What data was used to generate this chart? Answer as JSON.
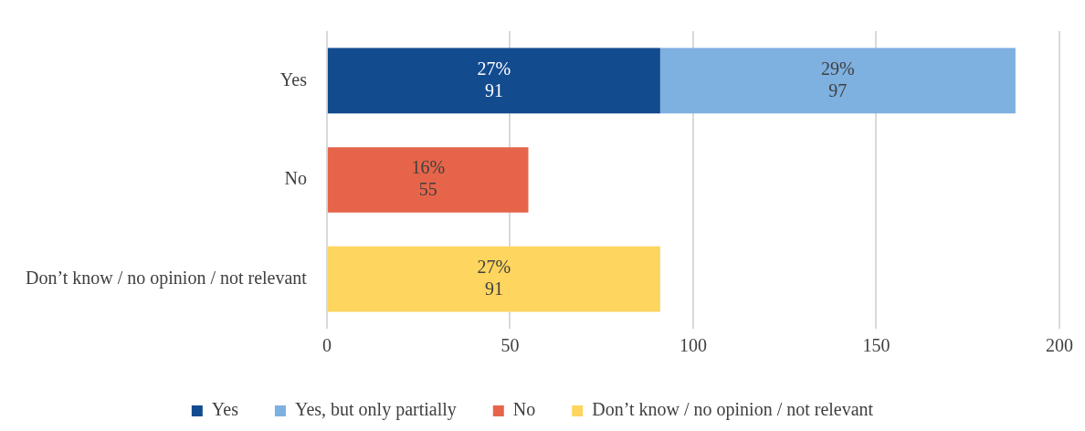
{
  "chart_data": {
    "type": "bar",
    "orientation": "horizontal",
    "stacked": true,
    "categories": [
      "Yes",
      "No",
      "Don’t know / no opinion / not relevant"
    ],
    "series": [
      {
        "name": "Yes",
        "color": "#134b8f",
        "values": [
          91,
          null,
          null
        ],
        "value_labels": [
          "27%\n91",
          null,
          null
        ]
      },
      {
        "name": "Yes, but only partially",
        "color": "#7eb0e0",
        "values": [
          97,
          null,
          null
        ],
        "value_labels": [
          "29%\n97",
          null,
          null
        ]
      },
      {
        "name": "No",
        "color": "#e6654a",
        "values": [
          null,
          55,
          null
        ],
        "value_labels": [
          null,
          "16%\n55",
          null
        ]
      },
      {
        "name": "Don’t know / no opinion / not relevant",
        "color": "#fdd55f",
        "values": [
          null,
          null,
          91
        ],
        "value_labels": [
          null,
          null,
          "27%\n91"
        ]
      }
    ],
    "xlim": [
      0,
      200
    ],
    "xticks": [
      0,
      50,
      100,
      150,
      200
    ],
    "grid": "x",
    "legend": "bottom"
  }
}
